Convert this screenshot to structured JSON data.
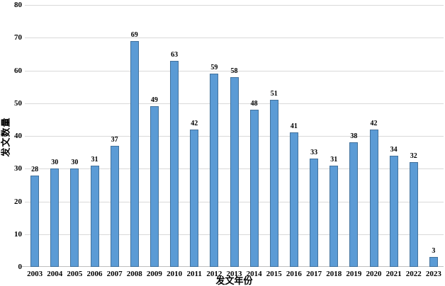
{
  "chart_data": {
    "type": "bar",
    "title": "",
    "categories": [
      "2003",
      "2004",
      "2005",
      "2006",
      "2007",
      "2008",
      "2009",
      "2010",
      "2011",
      "2012",
      "2013",
      "2014",
      "2015",
      "2016",
      "2017",
      "2018",
      "2019",
      "2020",
      "2021",
      "2022",
      "2023"
    ],
    "values": [
      28,
      30,
      30,
      31,
      37,
      69,
      49,
      63,
      42,
      59,
      58,
      48,
      51,
      41,
      33,
      31,
      38,
      42,
      34,
      32,
      3
    ],
    "xlabel": "发文年份",
    "ylabel": "发文数量",
    "ylim": [
      0,
      80
    ],
    "ytick_step": 10,
    "yticks": [
      0,
      10,
      20,
      30,
      40,
      50,
      60,
      70,
      80
    ],
    "grid": "horizontal",
    "legend": "none",
    "data_labels": true,
    "colors": {
      "bar_fill": "#5B9BD5",
      "bar_border": "#41719C",
      "gridline": "#D9D9D9",
      "axis_line": "#BFBFBF",
      "text": "#000000",
      "background": "#FFFFFF"
    }
  }
}
